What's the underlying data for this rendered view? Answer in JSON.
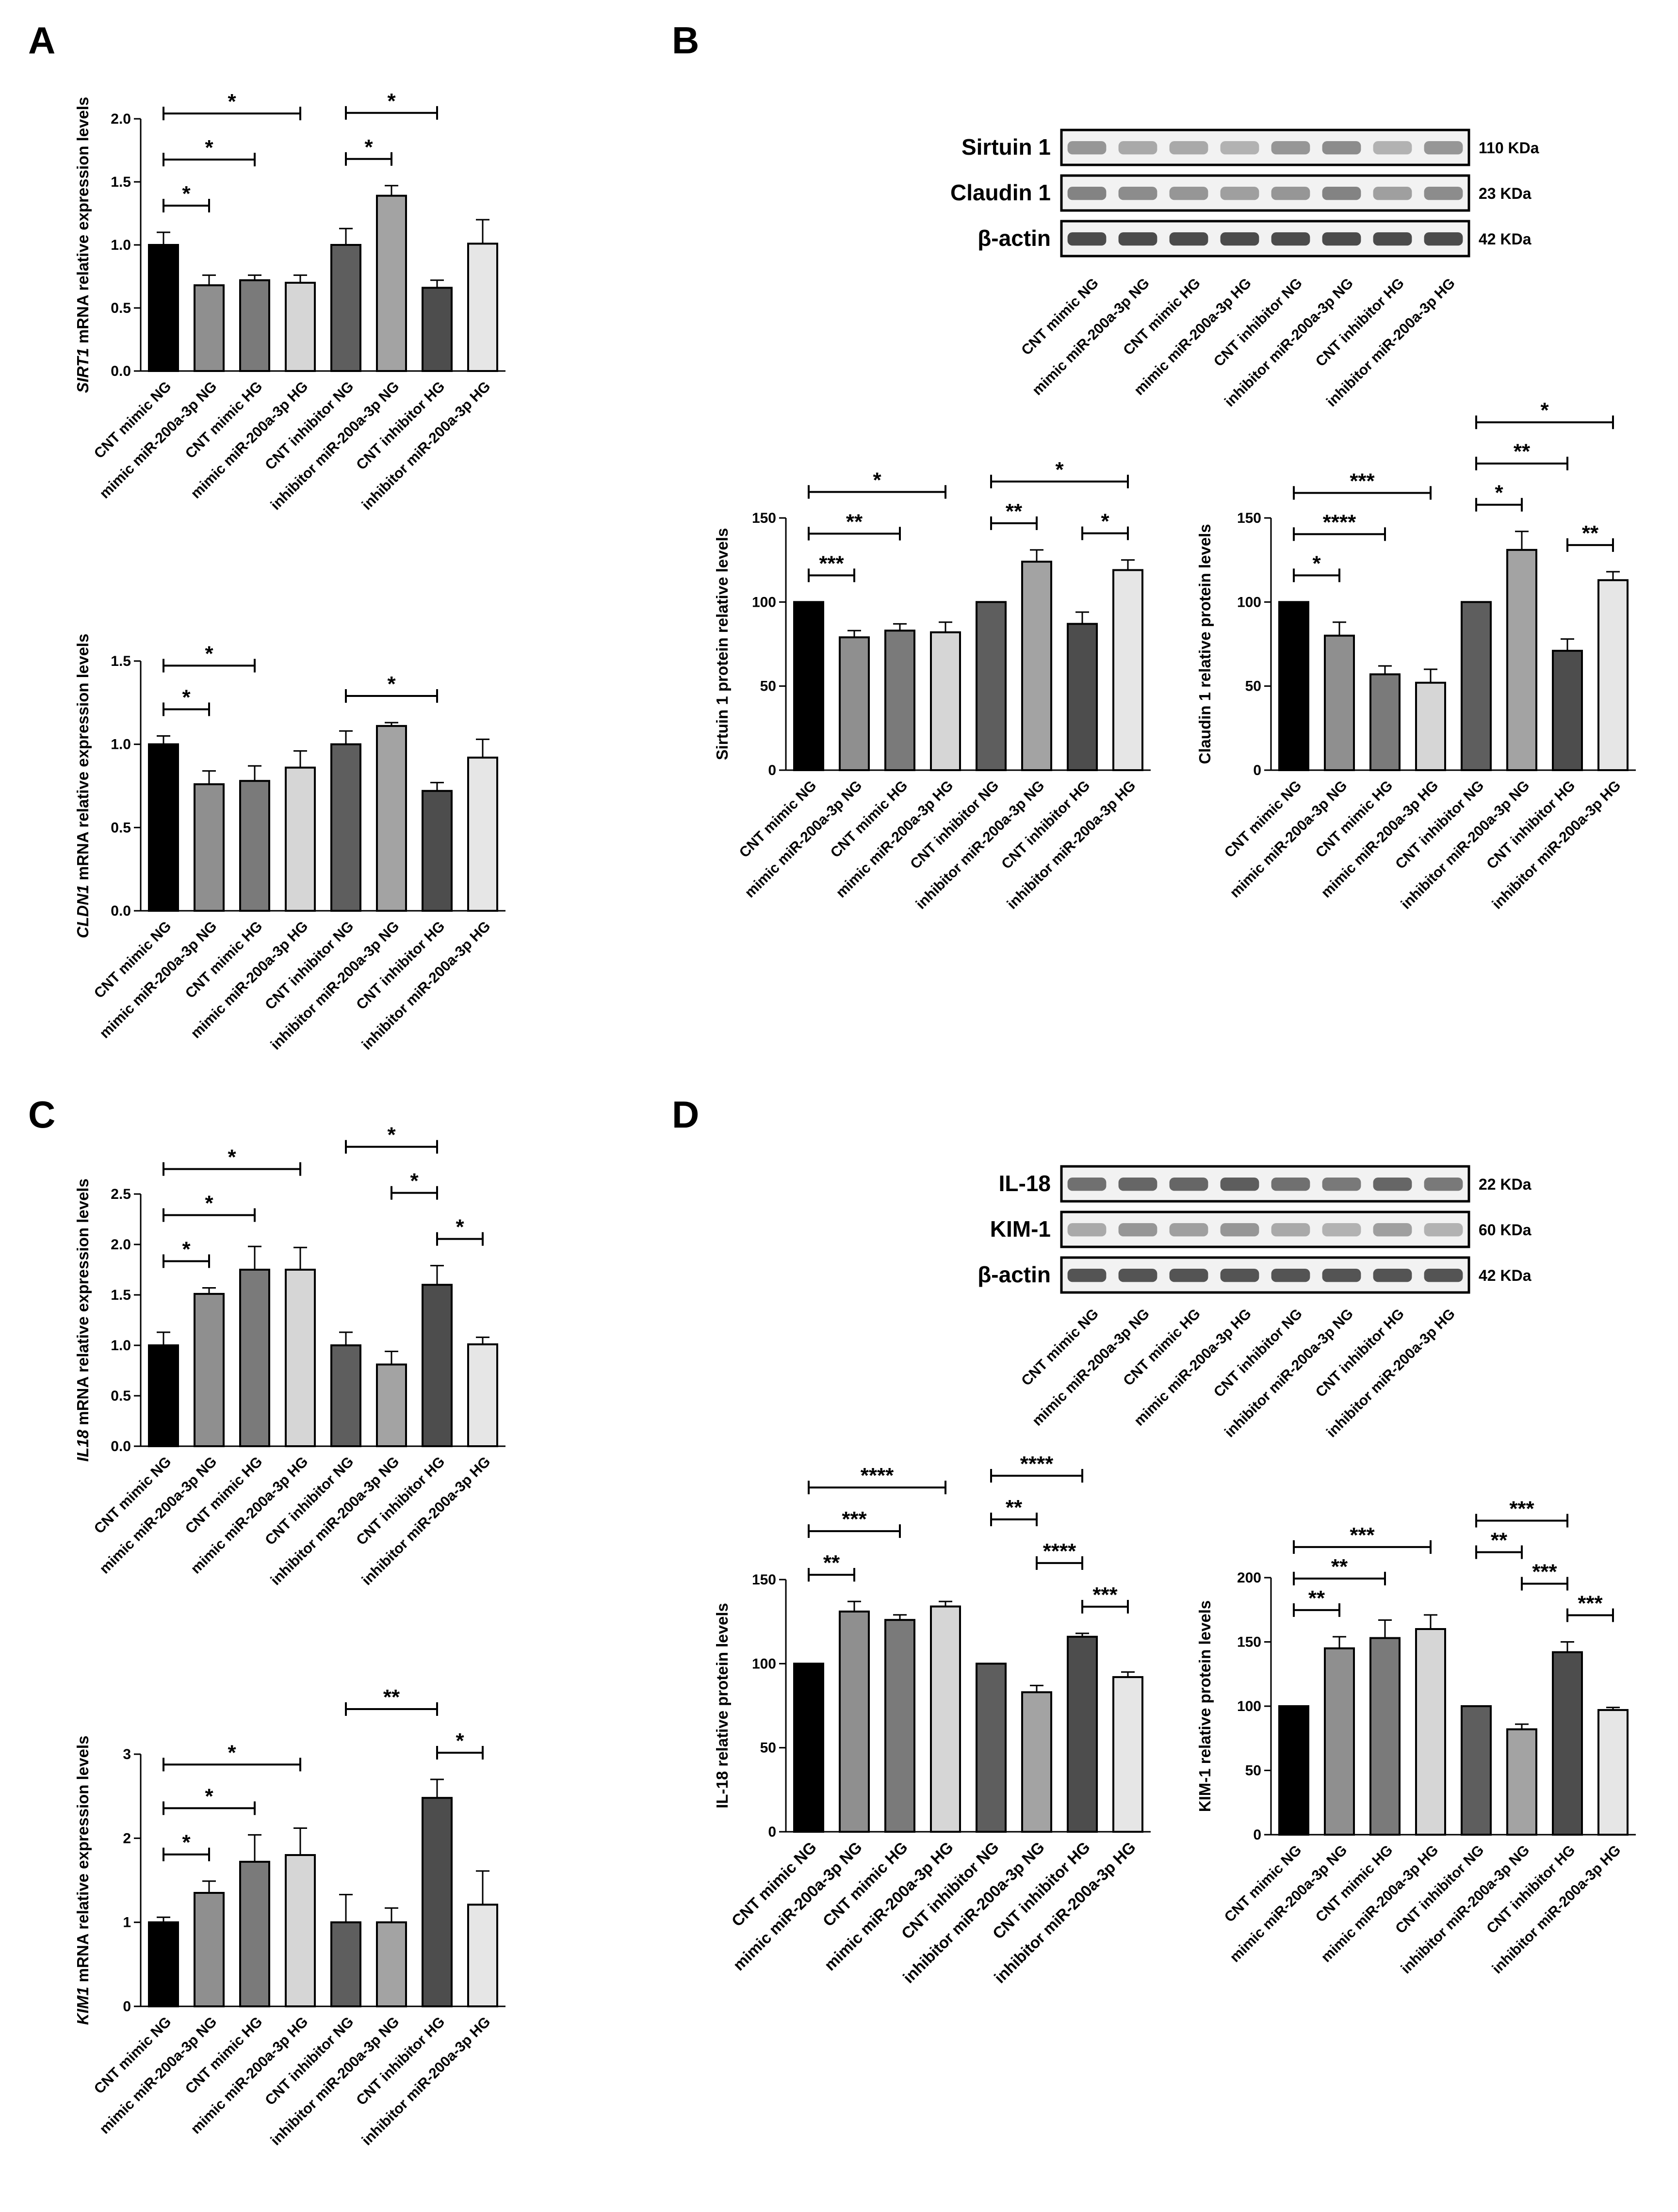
{
  "panels": [
    {
      "letter": "A"
    },
    {
      "letter": "B"
    },
    {
      "letter": "C"
    },
    {
      "letter": "D"
    }
  ],
  "groups": [
    "CNT mimic NG",
    "mimic miR-200a-3p NG",
    "CNT mimic HG",
    "mimic miR-200a-3p HG",
    "CNT inhibitor NG",
    "inhibitor miR-200a-3p NG",
    "CNT inhibitor HG",
    "inhibitor miR-200a-3p HG"
  ],
  "bar_colors": [
    "#000000",
    "#8f8f8f",
    "#7a7a7a",
    "#d6d6d6",
    "#5e5e5e",
    "#a3a3a3",
    "#4d4d4d",
    "#e6e6e6"
  ],
  "blots": [
    {
      "id": "blot-b",
      "proteins": [
        {
          "name": "Sirtuin 1",
          "size": "110 KDa"
        },
        {
          "name": "Claudin 1",
          "size": "23 KDa"
        },
        {
          "name": "β-actin",
          "size": "42 KDa"
        }
      ]
    },
    {
      "id": "blot-d",
      "proteins": [
        {
          "name": "IL-18",
          "size": "22 KDa"
        },
        {
          "name": "KIM-1",
          "size": "60 KDa"
        },
        {
          "name": "β-actin",
          "size": "42 KDa"
        }
      ]
    }
  ],
  "chart_data": [
    {
      "id": "A-SIRT1",
      "type": "bar",
      "ylabel_italic": "SIRT1",
      "ylabel_rest": " mRNA relative expression levels",
      "ylim": [
        0,
        2.0
      ],
      "yticks": [
        "0.0",
        "0.5",
        "1.0",
        "1.5",
        "2.0"
      ],
      "values": [
        1.0,
        0.68,
        0.72,
        0.7,
        1.0,
        1.39,
        0.66,
        1.01
      ],
      "errors": [
        0.1,
        0.08,
        0.04,
        0.06,
        0.13,
        0.08,
        0.06,
        0.19
      ],
      "significance": [
        {
          "from": 0,
          "to": 1,
          "label": "*"
        },
        {
          "from": 0,
          "to": 2,
          "label": "*"
        },
        {
          "from": 0,
          "to": 3,
          "label": "*"
        },
        {
          "from": 4,
          "to": 5,
          "label": "*"
        },
        {
          "from": 4,
          "to": 6,
          "label": "*"
        }
      ]
    },
    {
      "id": "A-CLDN1",
      "type": "bar",
      "ylabel_italic": "CLDN1",
      "ylabel_rest": " mRNA relative expression levels",
      "ylim": [
        0,
        1.5
      ],
      "yticks": [
        "0.0",
        "0.5",
        "1.0",
        "1.5"
      ],
      "values": [
        1.0,
        0.76,
        0.78,
        0.86,
        1.0,
        1.11,
        0.72,
        0.92
      ],
      "errors": [
        0.05,
        0.08,
        0.09,
        0.1,
        0.08,
        0.02,
        0.05,
        0.11
      ],
      "significance": [
        {
          "from": 0,
          "to": 1,
          "label": "*"
        },
        {
          "from": 0,
          "to": 2,
          "label": "*"
        },
        {
          "from": 4,
          "to": 6,
          "label": "*"
        }
      ]
    },
    {
      "id": "B-Sirtuin1",
      "type": "bar",
      "ylabel": "Sirtuin 1 protein relative levels",
      "ylim": [
        0,
        150
      ],
      "yticks": [
        "0",
        "50",
        "100",
        "150"
      ],
      "values": [
        100,
        79,
        83,
        82,
        100,
        124,
        87,
        119
      ],
      "errors": [
        0,
        4,
        4,
        6,
        0,
        7,
        7,
        6
      ],
      "significance": [
        {
          "from": 0,
          "to": 1,
          "label": "***"
        },
        {
          "from": 0,
          "to": 2,
          "label": "**"
        },
        {
          "from": 0,
          "to": 3,
          "label": "*"
        },
        {
          "from": 4,
          "to": 5,
          "label": "**"
        },
        {
          "from": 4,
          "to": 7,
          "label": "*"
        },
        {
          "from": 6,
          "to": 7,
          "label": "*"
        }
      ]
    },
    {
      "id": "B-Claudin1",
      "type": "bar",
      "ylabel": "Claudin 1 relative protein  levels",
      "ylim": [
        0,
        150
      ],
      "yticks": [
        "0",
        "50",
        "100",
        "150"
      ],
      "values": [
        100,
        80,
        57,
        52,
        100,
        131,
        71,
        113
      ],
      "errors": [
        0,
        8,
        5,
        8,
        0,
        11,
        7,
        5
      ],
      "significance": [
        {
          "from": 0,
          "to": 1,
          "label": "*"
        },
        {
          "from": 0,
          "to": 2,
          "label": "****"
        },
        {
          "from": 0,
          "to": 3,
          "label": "***"
        },
        {
          "from": 4,
          "to": 5,
          "label": "*"
        },
        {
          "from": 4,
          "to": 6,
          "label": "**"
        },
        {
          "from": 4,
          "to": 7,
          "label": "*"
        },
        {
          "from": 6,
          "to": 7,
          "label": "**"
        }
      ]
    },
    {
      "id": "C-IL18",
      "type": "bar",
      "ylabel_italic": "IL18",
      "ylabel_rest": " mRNA relative expression levels",
      "ylim": [
        0,
        2.5
      ],
      "yticks": [
        "0.0",
        "0.5",
        "1.0",
        "1.5",
        "2.0",
        "2.5"
      ],
      "values": [
        1.0,
        1.51,
        1.75,
        1.75,
        1.0,
        0.81,
        1.6,
        1.01
      ],
      "errors": [
        0.13,
        0.06,
        0.23,
        0.22,
        0.13,
        0.13,
        0.19,
        0.07
      ],
      "significance": [
        {
          "from": 0,
          "to": 1,
          "label": "*"
        },
        {
          "from": 0,
          "to": 2,
          "label": "*"
        },
        {
          "from": 0,
          "to": 3,
          "label": "*"
        },
        {
          "from": 4,
          "to": 6,
          "label": "*"
        },
        {
          "from": 5,
          "to": 6,
          "label": "*"
        },
        {
          "from": 6,
          "to": 7,
          "label": "*"
        }
      ]
    },
    {
      "id": "C-KIM1",
      "type": "bar",
      "ylabel_italic": "KIM1",
      "ylabel_rest": " mRNA relative expression levels",
      "ylim": [
        0,
        3
      ],
      "yticks": [
        "0",
        "1",
        "2",
        "3"
      ],
      "values": [
        1.0,
        1.35,
        1.72,
        1.8,
        1.0,
        1.0,
        2.48,
        1.21
      ],
      "errors": [
        0.06,
        0.14,
        0.32,
        0.32,
        0.33,
        0.17,
        0.22,
        0.4
      ],
      "significance": [
        {
          "from": 0,
          "to": 1,
          "label": "*"
        },
        {
          "from": 0,
          "to": 2,
          "label": "*"
        },
        {
          "from": 0,
          "to": 3,
          "label": "*"
        },
        {
          "from": 4,
          "to": 6,
          "label": "**"
        },
        {
          "from": 6,
          "to": 7,
          "label": "*"
        }
      ]
    },
    {
      "id": "D-IL18",
      "type": "bar",
      "ylabel": "IL-18 relative protein levels",
      "ylim": [
        0,
        150
      ],
      "yticks": [
        "0",
        "50",
        "100",
        "150"
      ],
      "values": [
        100,
        131,
        126,
        134,
        100,
        83,
        116,
        92
      ],
      "errors": [
        0,
        6,
        3,
        3,
        0,
        4,
        2,
        3
      ],
      "significance": [
        {
          "from": 0,
          "to": 1,
          "label": "**"
        },
        {
          "from": 0,
          "to": 2,
          "label": "***"
        },
        {
          "from": 0,
          "to": 3,
          "label": "****"
        },
        {
          "from": 4,
          "to": 5,
          "label": "**"
        },
        {
          "from": 4,
          "to": 6,
          "label": "****"
        },
        {
          "from": 5,
          "to": 6,
          "label": "****"
        },
        {
          "from": 6,
          "to": 7,
          "label": "***"
        }
      ]
    },
    {
      "id": "D-KIM1",
      "type": "bar",
      "ylabel": "KIM-1 relative protein levels",
      "ylim": [
        0,
        200
      ],
      "yticks": [
        "0",
        "50",
        "100",
        "150",
        "200"
      ],
      "values": [
        100,
        145,
        153,
        160,
        100,
        82,
        142,
        97
      ],
      "errors": [
        0,
        9,
        14,
        11,
        0,
        4,
        8,
        2
      ],
      "significance": [
        {
          "from": 0,
          "to": 1,
          "label": "**"
        },
        {
          "from": 0,
          "to": 2,
          "label": "**"
        },
        {
          "from": 0,
          "to": 3,
          "label": "***"
        },
        {
          "from": 4,
          "to": 5,
          "label": "**"
        },
        {
          "from": 4,
          "to": 6,
          "label": "***"
        },
        {
          "from": 5,
          "to": 6,
          "label": "***"
        },
        {
          "from": 6,
          "to": 7,
          "label": "***"
        }
      ]
    }
  ]
}
